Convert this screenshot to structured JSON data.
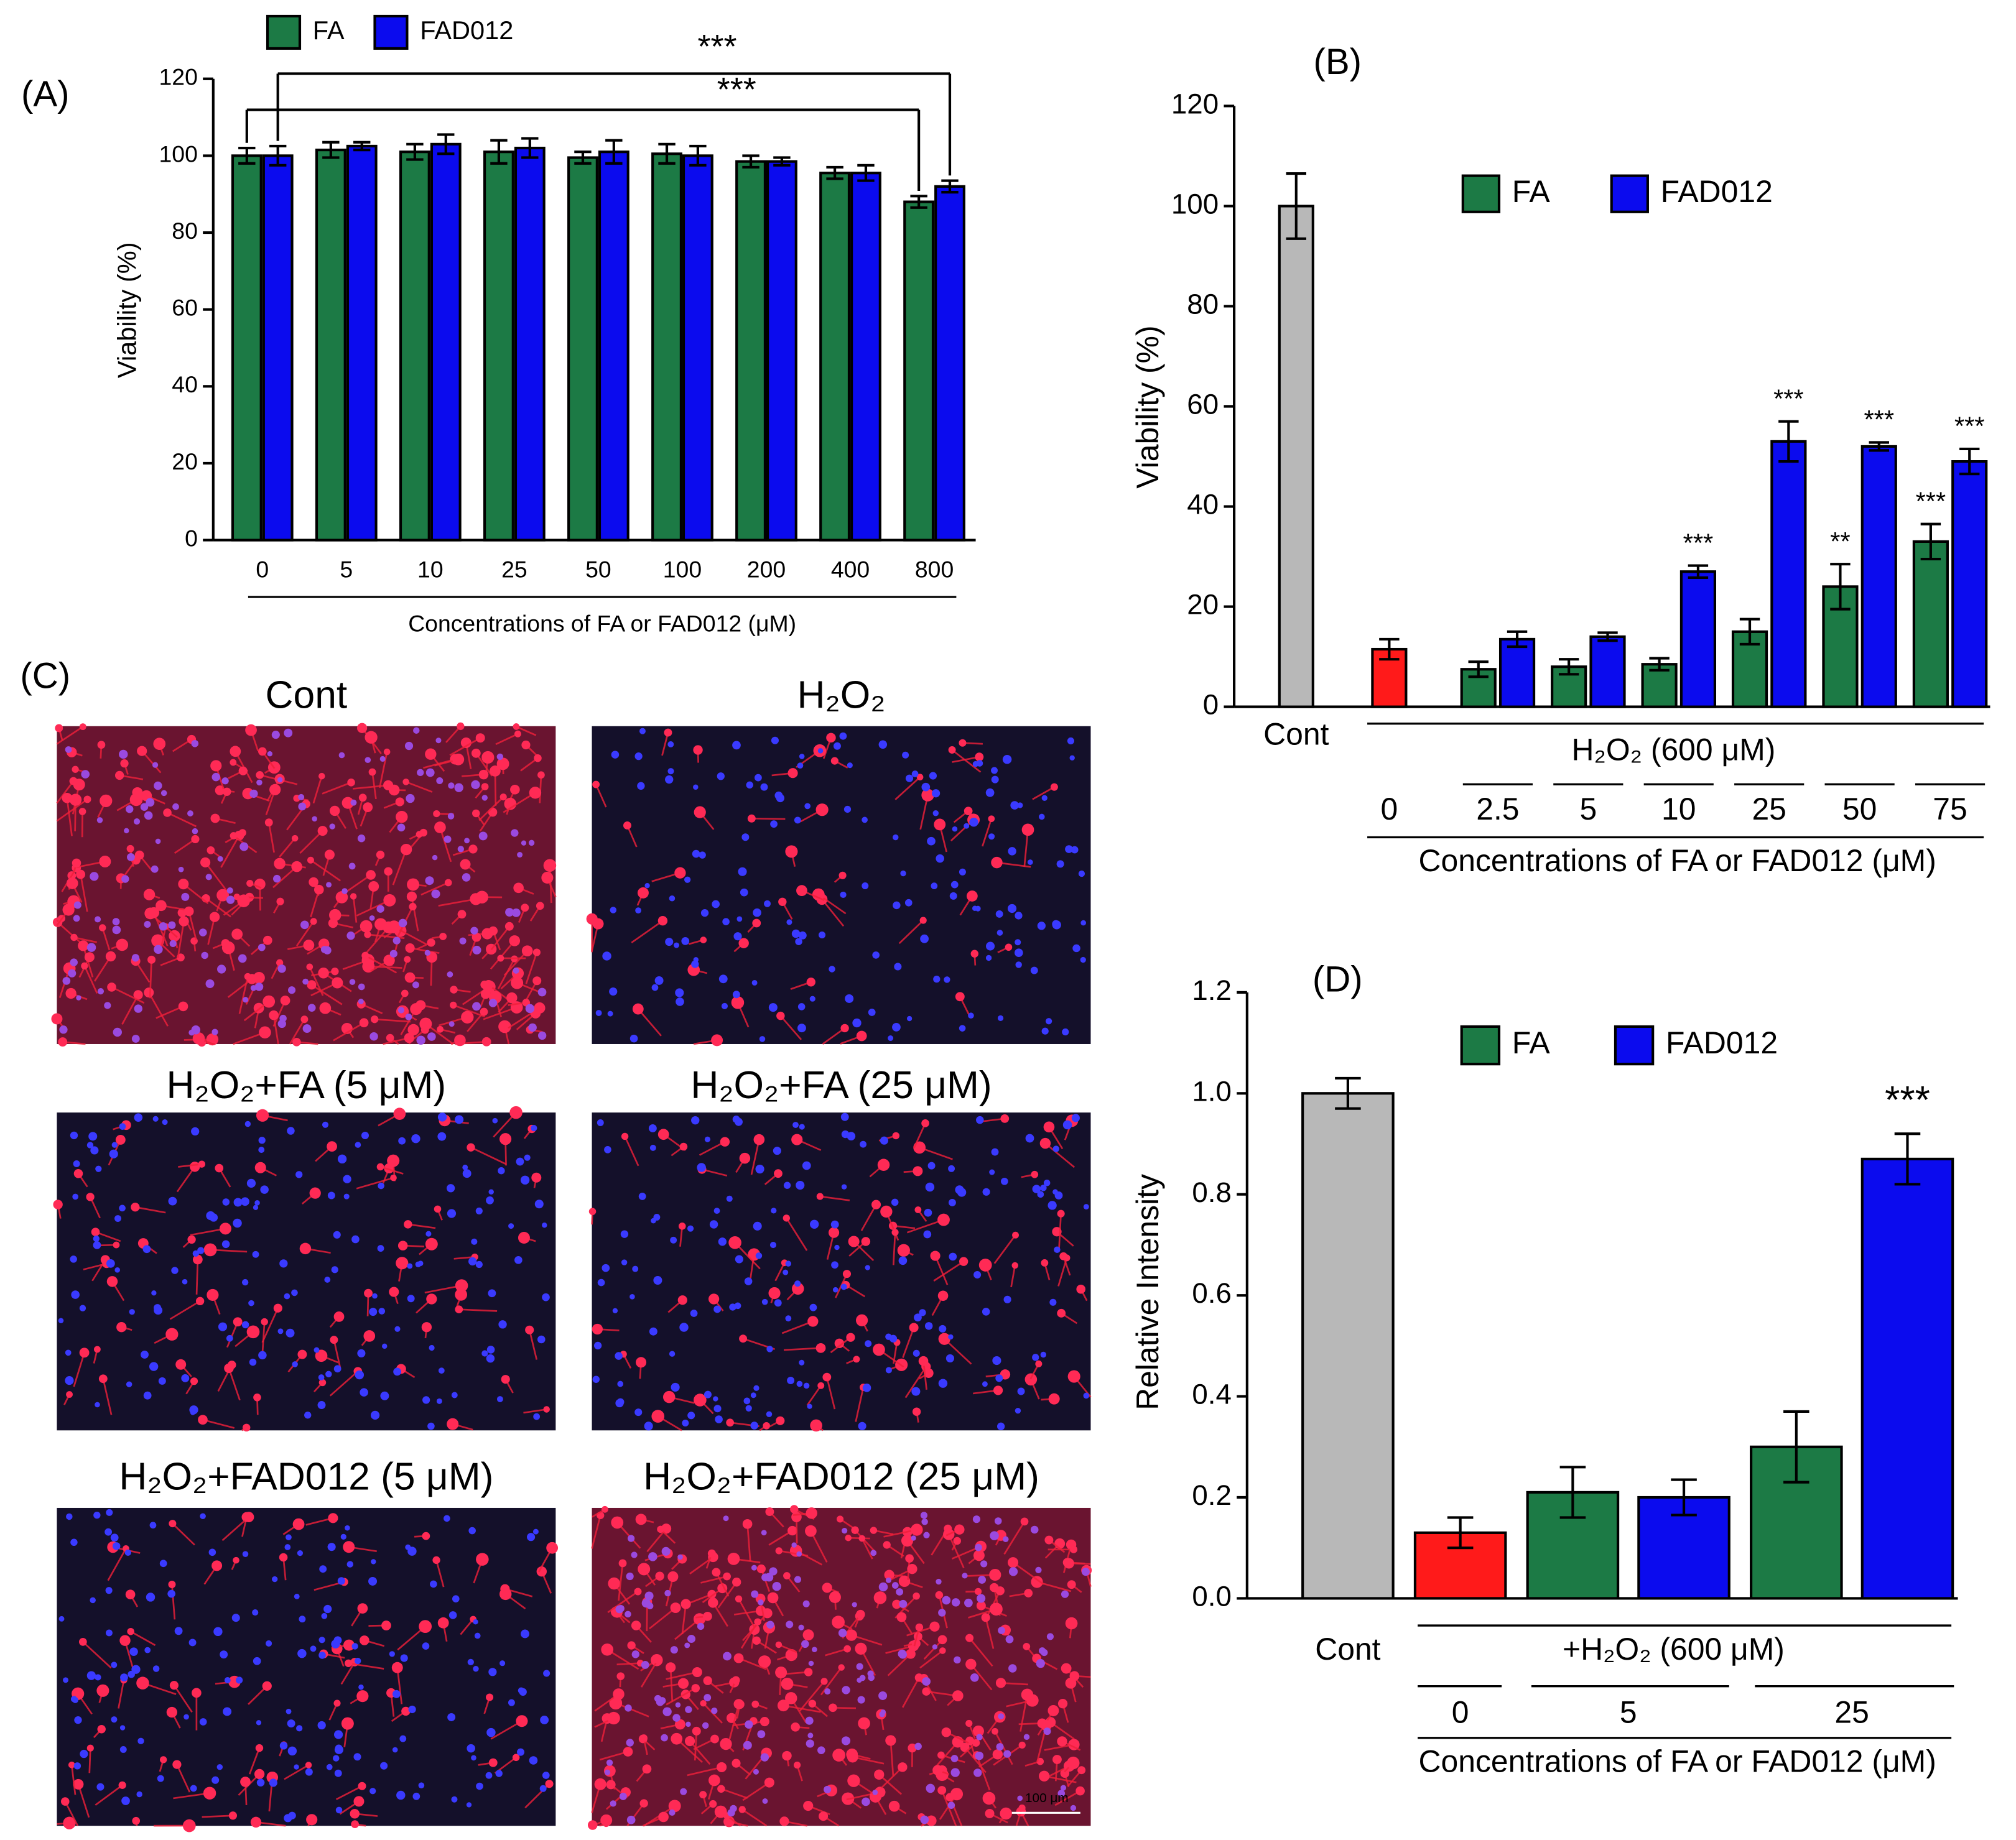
{
  "chart_data": [
    {
      "type": "bar",
      "label": "(A)",
      "ylabel": "Viability (%)",
      "xlabel": "Concentrations of FA or FAD012 (μM)",
      "categories": [
        "0",
        "5",
        "10",
        "25",
        "50",
        "100",
        "200",
        "400",
        "800"
      ],
      "series": [
        {
          "name": "FA",
          "color": "#1c7a45",
          "values": [
            100,
            101.5,
            101,
            101,
            99.5,
            100.5,
            98.5,
            95.5,
            88
          ],
          "errors": [
            2,
            2,
            2,
            3,
            1.5,
            2.5,
            1.5,
            1.5,
            1.5
          ]
        },
        {
          "name": "FAD012",
          "color": "#0b0bee",
          "values": [
            100,
            102.5,
            103,
            102,
            101,
            100,
            98.5,
            95.5,
            92
          ],
          "errors": [
            2.5,
            1,
            2.5,
            2.5,
            3,
            2.5,
            1,
            2,
            1.5
          ]
        }
      ],
      "annotations": [
        "***",
        "***"
      ],
      "ylim": [
        0,
        120
      ],
      "yticks": [
        0,
        20,
        40,
        60,
        80,
        100,
        120
      ],
      "legend": "top"
    },
    {
      "type": "bar",
      "label": "(B)",
      "ylabel": "Viability (%)",
      "xlabel": "Concentrations of FA or FAD012 (μM)",
      "group_label": "H₂O₂ (600 μM)",
      "categories": [
        "Cont",
        "0",
        "2.5",
        "5",
        "10",
        "25",
        "50",
        "75"
      ],
      "base": {
        "colors": [
          "#b8b8b8",
          "#ff1a1a"
        ],
        "values": [
          100,
          11.5
        ],
        "errors": [
          6.5,
          2
        ]
      },
      "series": [
        {
          "name": "FA",
          "color": "#1c7a45",
          "values": [
            null,
            null,
            7.5,
            8,
            8.5,
            15,
            24,
            33
          ],
          "errors": [
            null,
            null,
            1.5,
            1.5,
            1.2,
            2.5,
            4.5,
            3.5
          ],
          "labels": [
            null,
            null,
            null,
            null,
            null,
            null,
            "**",
            "***"
          ]
        },
        {
          "name": "FAD012",
          "color": "#0b0bee",
          "values": [
            null,
            null,
            13.5,
            14,
            27,
            53,
            52,
            49
          ],
          "errors": [
            null,
            null,
            1.5,
            0.8,
            1.2,
            4,
            0.8,
            2.5
          ],
          "labels": [
            null,
            null,
            null,
            null,
            "***",
            "***",
            "***",
            "***"
          ]
        }
      ],
      "ylim": [
        0,
        120
      ],
      "yticks": [
        0,
        20,
        40,
        60,
        80,
        100,
        120
      ],
      "legend": "top"
    },
    {
      "type": "bar",
      "label": "(D)",
      "ylabel": "Relative Intensity",
      "xlabel": "Concentrations of FA or FAD012 (μM)",
      "group_label": "+H₂O₂ (600 μM)",
      "categories": [
        "Cont",
        "0",
        "5",
        "25"
      ],
      "base": {
        "colors": [
          "#b8b8b8",
          "#ff1a1a"
        ],
        "values": [
          1.0,
          0.13
        ],
        "errors": [
          0.03,
          0.03
        ]
      },
      "series": [
        {
          "name": "FA",
          "color": "#1c7a45",
          "values": [
            null,
            null,
            0.21,
            0.3
          ],
          "errors": [
            null,
            null,
            0.05,
            0.07
          ],
          "labels": [
            null,
            null,
            null,
            null
          ]
        },
        {
          "name": "FAD012",
          "color": "#0b0bee",
          "values": [
            null,
            null,
            0.2,
            0.87
          ],
          "errors": [
            null,
            null,
            0.035,
            0.05
          ],
          "labels": [
            null,
            null,
            null,
            "***"
          ]
        }
      ],
      "ylim": [
        0,
        1.2
      ],
      "yticks": [
        {
          "value": 0,
          "label": "0.0"
        },
        {
          "value": 0.2,
          "label": "0.2"
        },
        {
          "value": 0.4,
          "label": "0.4"
        },
        {
          "value": 0.6,
          "label": "0.6"
        },
        {
          "value": 0.8,
          "label": "0.8"
        },
        {
          "value": 1,
          "label": "1.0"
        },
        {
          "value": 1.2,
          "label": "1.2"
        }
      ],
      "legend": "top"
    }
  ],
  "panel_c": {
    "label": "(C)",
    "images": [
      {
        "title": "Cont"
      },
      {
        "title": "H₂O₂"
      },
      {
        "title": "H₂O₂+FA (5 μM)"
      },
      {
        "title": "H₂O₂+FA (25 μM)"
      },
      {
        "title": "H₂O₂+FAD012 (5 μM)"
      },
      {
        "title": "H₂O₂+FAD012 (25 μM)"
      }
    ],
    "scale_bar": "100 μm"
  }
}
